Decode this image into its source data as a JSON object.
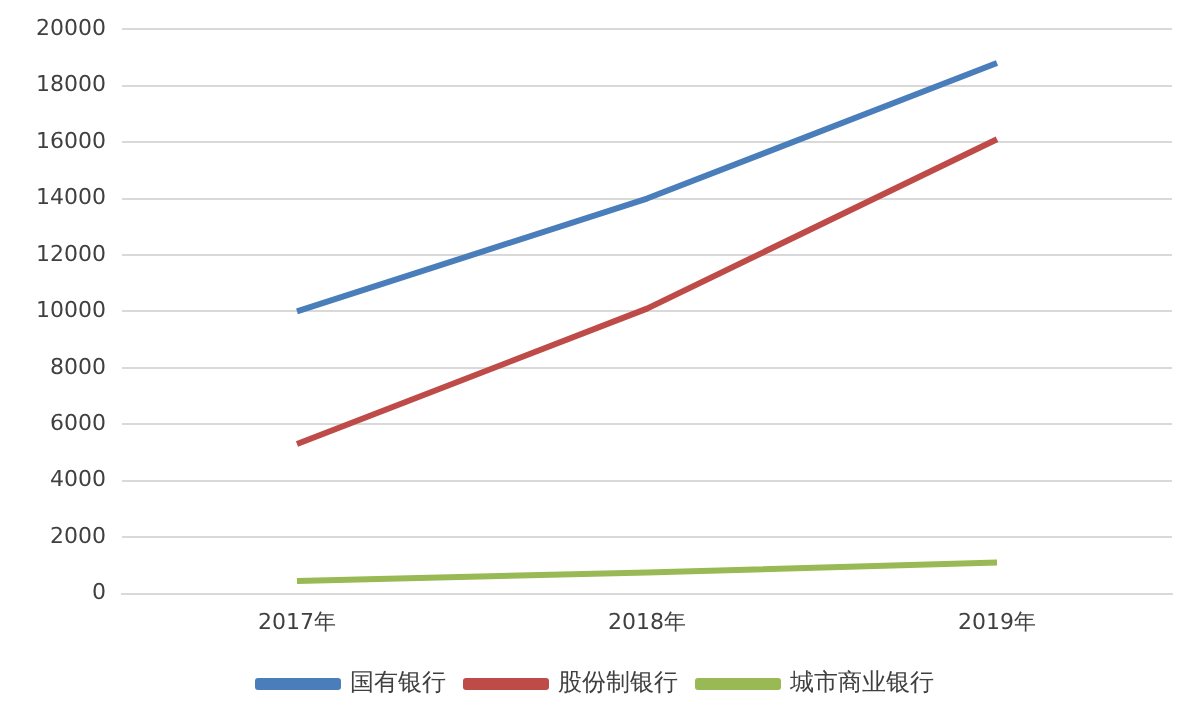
{
  "chart_data": {
    "type": "line",
    "categories": [
      "2017年",
      "2018年",
      "2019年"
    ],
    "series": [
      {
        "name": "国有银行",
        "color": "#4a7ebb",
        "values": [
          10000,
          14000,
          18800
        ]
      },
      {
        "name": "股份制银行",
        "color": "#be4b48",
        "values": [
          5300,
          10100,
          16100
        ]
      },
      {
        "name": "城市商业银行",
        "color": "#98b954",
        "values": [
          450,
          750,
          1100
        ]
      }
    ],
    "ylim": [
      0,
      20000
    ],
    "yticks": [
      0,
      2000,
      4000,
      6000,
      8000,
      10000,
      12000,
      14000,
      16000,
      18000,
      20000
    ],
    "grid": "y",
    "legend": "bottom",
    "marker": "none",
    "line_style": "solid"
  }
}
